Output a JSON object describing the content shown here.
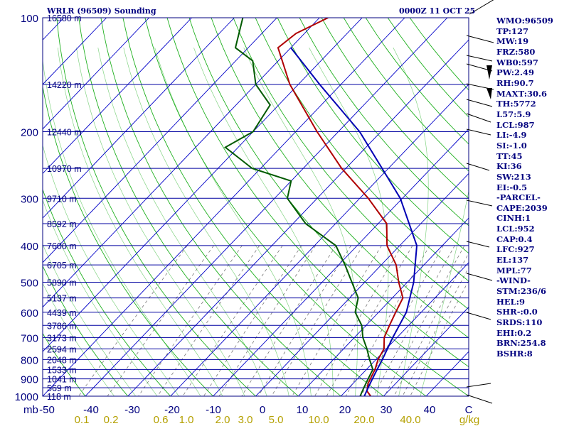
{
  "title": "WRLR (96509) Sounding",
  "time": "0000Z 11 OCT 25",
  "units": {
    "pressure": "mb",
    "mixing": "g/kg"
  },
  "pressure_labels": [
    "100",
    "200",
    "300",
    "400",
    "500",
    "600",
    "700",
    "800",
    "900",
    "1000"
  ],
  "height_labels": [
    {
      "p": 100,
      "text": "16580 m"
    },
    {
      "p": 150,
      "text": "14220 m"
    },
    {
      "p": 200,
      "text": "12440 m"
    },
    {
      "p": 250,
      "text": "10970 m"
    },
    {
      "p": 300,
      "text": "9710 m"
    },
    {
      "p": 350,
      "text": "8592 m"
    },
    {
      "p": 400,
      "text": "7600 m"
    },
    {
      "p": 450,
      "text": "6705 m"
    },
    {
      "p": 500,
      "text": "5890 m"
    },
    {
      "p": 550,
      "text": "5137 m"
    },
    {
      "p": 600,
      "text": "4439 m"
    },
    {
      "p": 650,
      "text": "3786 m"
    },
    {
      "p": 700,
      "text": "3173 m"
    },
    {
      "p": 750,
      "text": "2594 m"
    },
    {
      "p": 800,
      "text": "2048 m"
    },
    {
      "p": 850,
      "text": "1533 m"
    },
    {
      "p": 900,
      "text": "1041 m"
    },
    {
      "p": 950,
      "text": "569 m"
    },
    {
      "p": 1000,
      "text": "118 m"
    }
  ],
  "temp_ticks": [
    "-50",
    "-40",
    "-30",
    "-20",
    "-10",
    "0",
    "10",
    "20",
    "30",
    "40",
    "C"
  ],
  "mixing_ticks": [
    "0.1",
    "0.2",
    "0.6",
    "1.0",
    "2.0",
    "3.0",
    "5.0",
    "10.0",
    "20.0",
    "40.0"
  ],
  "indices": [
    "WMO:96509",
    "TP:127",
    "MW:19",
    "FRZ:580",
    "WB0:597",
    "PW:2.49",
    "RH:90.7",
    "MAXT:30.6",
    "TH:5772",
    "L57:5.9",
    "LCL:987",
    "LI:-4.9",
    "SI:-1.0",
    "TT:45",
    "KI:36",
    "SW:213",
    "EI:-0.5",
    "-PARCEL-",
    "CAPE:2039",
    "CINH:1",
    "LCL:952",
    "CAP:0.4",
    "LFC:927",
    "EL:137",
    "MPL:77",
    "-WIND-",
    "STM:236/6",
    "HEL:9",
    "SHR-:0.0",
    "SRDS:110",
    "EHI:0.2",
    "BRN:254.8",
    "BSHR:8"
  ],
  "colors": {
    "axis": "#00007f",
    "isobar": "#0000a0",
    "isotherm": "#0000c8",
    "dry": "#20b020",
    "moist": "#8cd48c",
    "mix": "#787878",
    "tempc": "#b00000",
    "dew": "#005a00",
    "parcel": "#0000b4",
    "mixlbl": "#b4a000"
  },
  "chart_data": {
    "type": "line",
    "title": "WRLR (96509) Sounding 0000Z 11 OCT 25",
    "xlabel": "C",
    "ylabel": "mb",
    "xlim": [
      -50,
      50
    ],
    "ylim": [
      1000,
      100
    ],
    "series": [
      {
        "name": "temperature",
        "points": [
          [
            1000,
            27.0
          ],
          [
            970,
            25.0
          ],
          [
            925,
            23.5
          ],
          [
            850,
            22.0
          ],
          [
            800,
            20.5
          ],
          [
            750,
            19.5
          ],
          [
            700,
            17.0
          ],
          [
            650,
            15.5
          ],
          [
            600,
            14.0
          ],
          [
            550,
            12.5
          ],
          [
            500,
            8.0
          ],
          [
            450,
            3.5
          ],
          [
            400,
            -3.0
          ],
          [
            350,
            -8.0
          ],
          [
            300,
            -18.0
          ],
          [
            250,
            -31.0
          ],
          [
            200,
            -45.0
          ],
          [
            150,
            -62.0
          ],
          [
            120,
            -73.0
          ],
          [
            110,
            -72.0
          ],
          [
            100,
            -68.0
          ]
        ]
      },
      {
        "name": "dewpoint",
        "points": [
          [
            1000,
            24.5
          ],
          [
            950,
            23.5
          ],
          [
            900,
            22.5
          ],
          [
            850,
            21.5
          ],
          [
            800,
            18.5
          ],
          [
            750,
            15.5
          ],
          [
            700,
            12.0
          ],
          [
            650,
            9.0
          ],
          [
            600,
            4.5
          ],
          [
            550,
            2.0
          ],
          [
            500,
            -3.0
          ],
          [
            450,
            -8.5
          ],
          [
            400,
            -15.0
          ],
          [
            350,
            -27.0
          ],
          [
            300,
            -37.0
          ],
          [
            270,
            -40.0
          ],
          [
            250,
            -52.0
          ],
          [
            220,
            -63.0
          ],
          [
            200,
            -60.0
          ],
          [
            170,
            -62.0
          ],
          [
            150,
            -70.0
          ],
          [
            130,
            -76.0
          ],
          [
            120,
            -83.0
          ],
          [
            100,
            -88.0
          ]
        ]
      },
      {
        "name": "parcel",
        "points": [
          [
            1000,
            25.5
          ],
          [
            950,
            24.5
          ],
          [
            900,
            23.5
          ],
          [
            850,
            22.5
          ],
          [
            800,
            21.5
          ],
          [
            700,
            19.0
          ],
          [
            600,
            16.5
          ],
          [
            500,
            11.5
          ],
          [
            400,
            4.0
          ],
          [
            300,
            -10.5
          ],
          [
            250,
            -21.5
          ],
          [
            200,
            -35.0
          ],
          [
            150,
            -55.0
          ],
          [
            120,
            -70.0
          ]
        ]
      }
    ]
  }
}
